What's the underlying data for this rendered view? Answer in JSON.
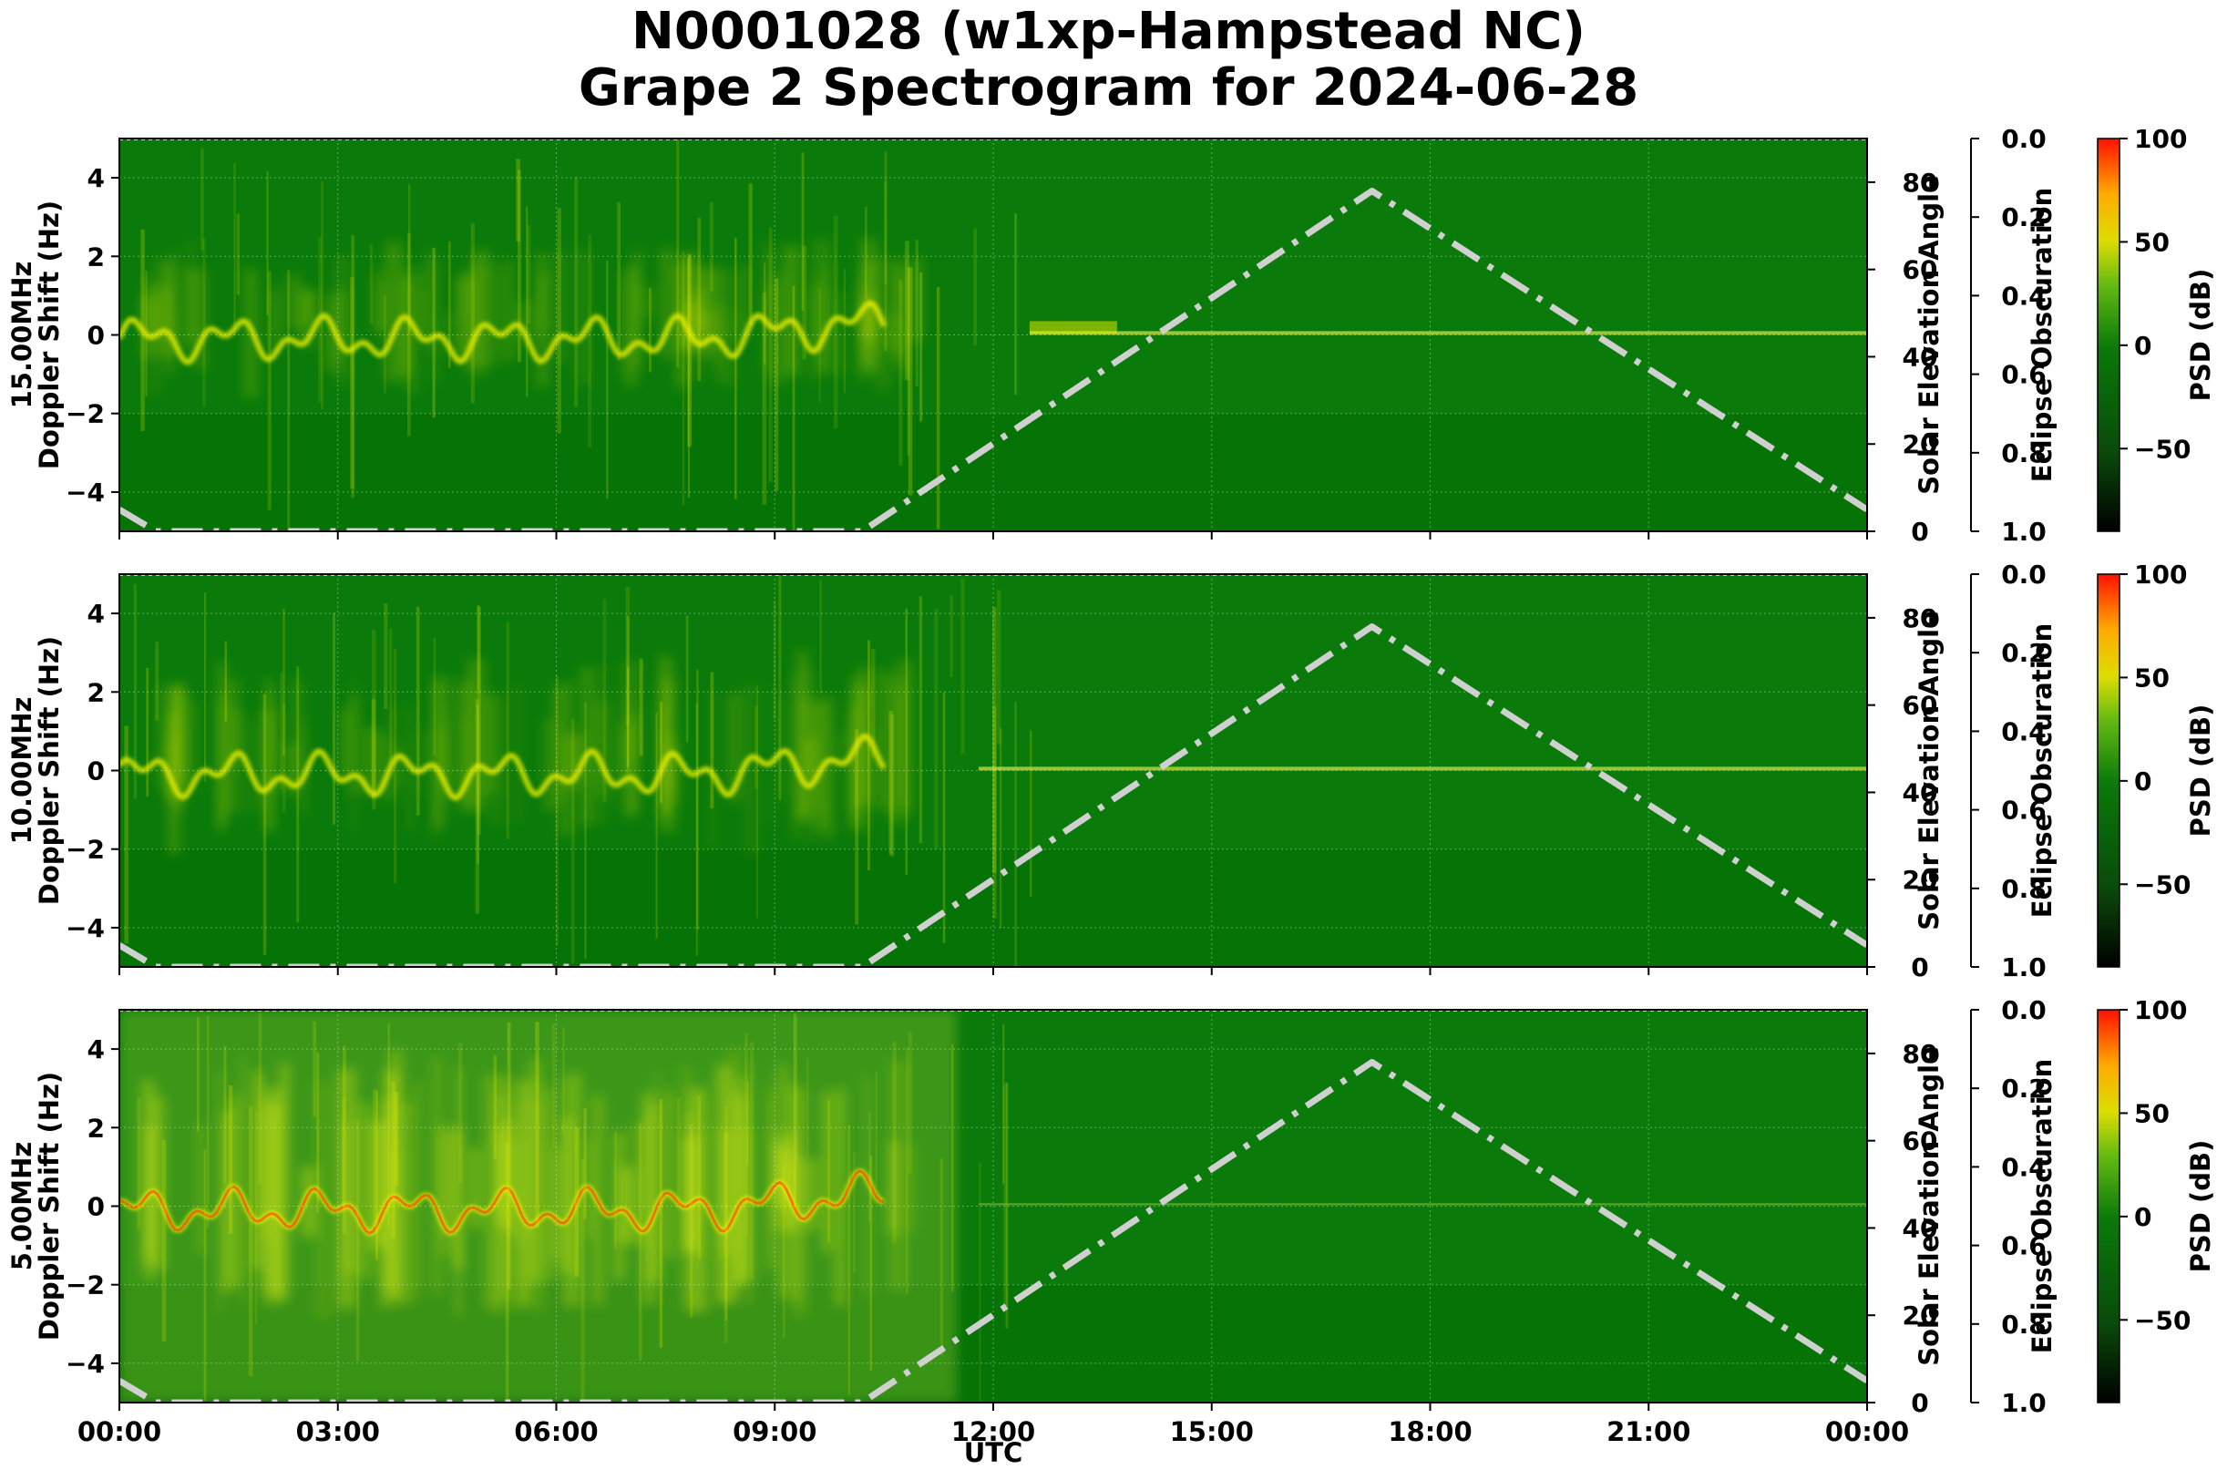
{
  "figure": {
    "title_line1": "N0001028 (w1xp-Hampstead NC)",
    "title_line2": "Grape 2 Spectrogram for 2024-06-28",
    "xlabel": "UTC",
    "x_ticks": [
      "00:00",
      "03:00",
      "06:00",
      "09:00",
      "12:00",
      "15:00",
      "18:00",
      "21:00",
      "00:00"
    ]
  },
  "colors": {
    "spectrogram_background": "#0a7a0a",
    "signal_high": "#f2f200",
    "signal_peak": "#ff2200",
    "solar_curve": "#d0d0d0"
  },
  "chart_data": [
    {
      "type": "heatmap",
      "frequency_label": "15.00MHz",
      "ylabel": "Doppler Shift (Hz)",
      "ylim": [
        -5,
        5
      ],
      "y_ticks": [
        "4",
        "2",
        "0",
        "−2",
        "−4"
      ],
      "y_tick_values": [
        4,
        2,
        0,
        -2,
        -4
      ],
      "x_range_utc": [
        "00:00",
        "24:00"
      ],
      "grid": true,
      "solar_elevation": {
        "label": "Solar Elevation Angle",
        "ylim": [
          0,
          90
        ],
        "ticks": [
          "80",
          "60",
          "40",
          "20",
          "0"
        ],
        "tick_values": [
          80,
          60,
          40,
          20,
          0
        ],
        "points": [
          [
            0.0,
            5
          ],
          [
            0.5,
            0
          ],
          [
            10.2,
            0
          ],
          [
            17.2,
            78
          ],
          [
            24.0,
            5
          ]
        ]
      },
      "eclipse_obscuration": {
        "label": "Eclipse Obscuration",
        "ticks": [
          "0.0",
          "0.2",
          "0.4",
          "0.6",
          "0.8",
          "1.0"
        ],
        "tick_values": [
          0.0,
          0.2,
          0.4,
          0.6,
          0.8,
          1.0
        ]
      },
      "colorbar": {
        "label": "PSD (dB)",
        "ticks": [
          "100",
          "50",
          "0",
          "−50"
        ],
        "tick_values": [
          100,
          50,
          0,
          -50
        ],
        "range": [
          -90,
          100
        ]
      }
    },
    {
      "type": "heatmap",
      "frequency_label": "10.00MHz",
      "ylabel": "Doppler Shift (Hz)",
      "ylim": [
        -5,
        5
      ],
      "y_ticks": [
        "4",
        "2",
        "0",
        "−2",
        "−4"
      ],
      "y_tick_values": [
        4,
        2,
        0,
        -2,
        -4
      ],
      "x_range_utc": [
        "00:00",
        "24:00"
      ],
      "grid": true,
      "solar_elevation": {
        "label": "Solar Elevation Angle",
        "ylim": [
          0,
          90
        ],
        "ticks": [
          "80",
          "60",
          "40",
          "20",
          "0"
        ],
        "tick_values": [
          80,
          60,
          40,
          20,
          0
        ],
        "points": [
          [
            0.0,
            5
          ],
          [
            0.5,
            0
          ],
          [
            10.2,
            0
          ],
          [
            17.2,
            78
          ],
          [
            24.0,
            5
          ]
        ]
      },
      "eclipse_obscuration": {
        "label": "Eclipse Obscuration",
        "ticks": [
          "0.0",
          "0.2",
          "0.4",
          "0.6",
          "0.8",
          "1.0"
        ],
        "tick_values": [
          0.0,
          0.2,
          0.4,
          0.6,
          0.8,
          1.0
        ]
      },
      "colorbar": {
        "label": "PSD (dB)",
        "ticks": [
          "100",
          "50",
          "0",
          "−50"
        ],
        "tick_values": [
          100,
          50,
          0,
          -50
        ],
        "range": [
          -90,
          100
        ]
      }
    },
    {
      "type": "heatmap",
      "frequency_label": "5.00MHz",
      "ylabel": "Doppler Shift (Hz)",
      "ylim": [
        -5,
        5
      ],
      "y_ticks": [
        "4",
        "2",
        "0",
        "−2",
        "−4"
      ],
      "y_tick_values": [
        4,
        2,
        0,
        -2,
        -4
      ],
      "x_range_utc": [
        "00:00",
        "24:00"
      ],
      "grid": true,
      "solar_elevation": {
        "label": "Solar Elevation Angle",
        "ylim": [
          0,
          90
        ],
        "ticks": [
          "80",
          "60",
          "40",
          "20",
          "0"
        ],
        "tick_values": [
          80,
          60,
          40,
          20,
          0
        ],
        "points": [
          [
            0.0,
            5
          ],
          [
            0.5,
            0
          ],
          [
            10.2,
            0
          ],
          [
            17.2,
            78
          ],
          [
            24.0,
            5
          ]
        ]
      },
      "eclipse_obscuration": {
        "label": "Eclipse Obscuration",
        "ticks": [
          "0.0",
          "0.2",
          "0.4",
          "0.6",
          "0.8",
          "1.0"
        ],
        "tick_values": [
          0.0,
          0.2,
          0.4,
          0.6,
          0.8,
          1.0
        ]
      },
      "colorbar": {
        "label": "PSD (dB)",
        "ticks": [
          "100",
          "50",
          "0",
          "−50"
        ],
        "tick_values": [
          100,
          50,
          0,
          -50
        ],
        "range": [
          -90,
          100
        ]
      }
    }
  ]
}
